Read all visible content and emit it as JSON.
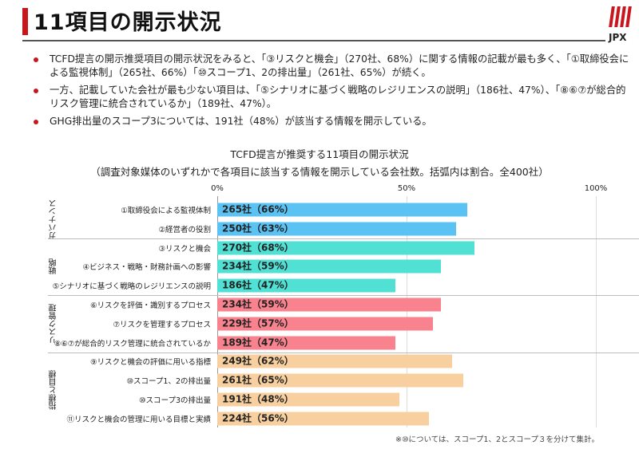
{
  "header": {
    "title": "11項目の開示状況",
    "logo_text": "JPX"
  },
  "bullets": [
    "TCFD提言の開示推奨項目の開示状況をみると、「③リスクと機会」（270社、68%）に関する情報の記載が最も多く、「①取締役会による監視体制」（265社、66%）「⑩スコープ1、2の排出量」（261社、65%）が続く。",
    "一方、記載していた会社が最も少ない項目は、「⑤シナリオに基づく戦略のレジリエンスの説明」（186社、47%）、「⑧⑥⑦が総合的リスク管理に統合されているか」（189社、47%）。",
    "GHG排出量のスコープ3については、191社（48%）が該当する情報を開示している。"
  ],
  "chart_data": {
    "type": "bar",
    "title": "TCFD提言が推奨する11項目の開示状況",
    "subtitle": "（調査対象媒体のいずれかで各項目に該当する情報を開示している会社数。括弧内は割合。全400社）",
    "xlim": [
      0,
      100
    ],
    "ticks": [
      "0%",
      "50%",
      "100%"
    ],
    "groups": [
      {
        "name": "ガバナンス",
        "color": "#5bc2f4",
        "items": [
          {
            "label": "①取締役会による監視体制",
            "count": 265,
            "pct": 66,
            "text": "265社（66%）"
          },
          {
            "label": "②経営者の役割",
            "count": 250,
            "pct": 63,
            "text": "250社（63%）"
          }
        ]
      },
      {
        "name": "戦略",
        "color": "#50e0d4",
        "items": [
          {
            "label": "③リスクと機会",
            "count": 270,
            "pct": 68,
            "text": "270社（68%）"
          },
          {
            "label": "④ビジネス・戦略・財務計画への影響",
            "count": 234,
            "pct": 59,
            "text": "234社（59%）"
          },
          {
            "label": "⑤シナリオに基づく戦略のレジリエンスの説明",
            "count": 186,
            "pct": 47,
            "text": "186社（47%）"
          }
        ]
      },
      {
        "name": "リスク管理",
        "color": "#f8838f",
        "items": [
          {
            "label": "⑥リスクを評価・識別するプロセス",
            "count": 234,
            "pct": 59,
            "text": "234社（59%）"
          },
          {
            "label": "⑦リスクを管理するプロセス",
            "count": 229,
            "pct": 57,
            "text": "229社（57%）"
          },
          {
            "label": "⑧⑥⑦が総合的リスク管理に統合されているか",
            "count": 189,
            "pct": 47,
            "text": "189社（47%）"
          }
        ]
      },
      {
        "name": "指標と目標",
        "color": "#f8d0a0",
        "items": [
          {
            "label": "⑨リスクと機会の評価に用いる指標",
            "count": 249,
            "pct": 62,
            "text": "249社（62%）"
          },
          {
            "label": "⑩スコープ1、2の排出量",
            "count": 261,
            "pct": 65,
            "text": "261社（65%）"
          },
          {
            "label": "⑩スコープ3の排出量",
            "count": 191,
            "pct": 48,
            "text": "191社（48%）"
          },
          {
            "label": "⑪リスクと機会の管理に用いる目標と実績",
            "count": 224,
            "pct": 56,
            "text": "224社（56%）"
          }
        ]
      }
    ],
    "note": "※⑩については、スコープ1、2とスコープ３を分けて集計。"
  }
}
